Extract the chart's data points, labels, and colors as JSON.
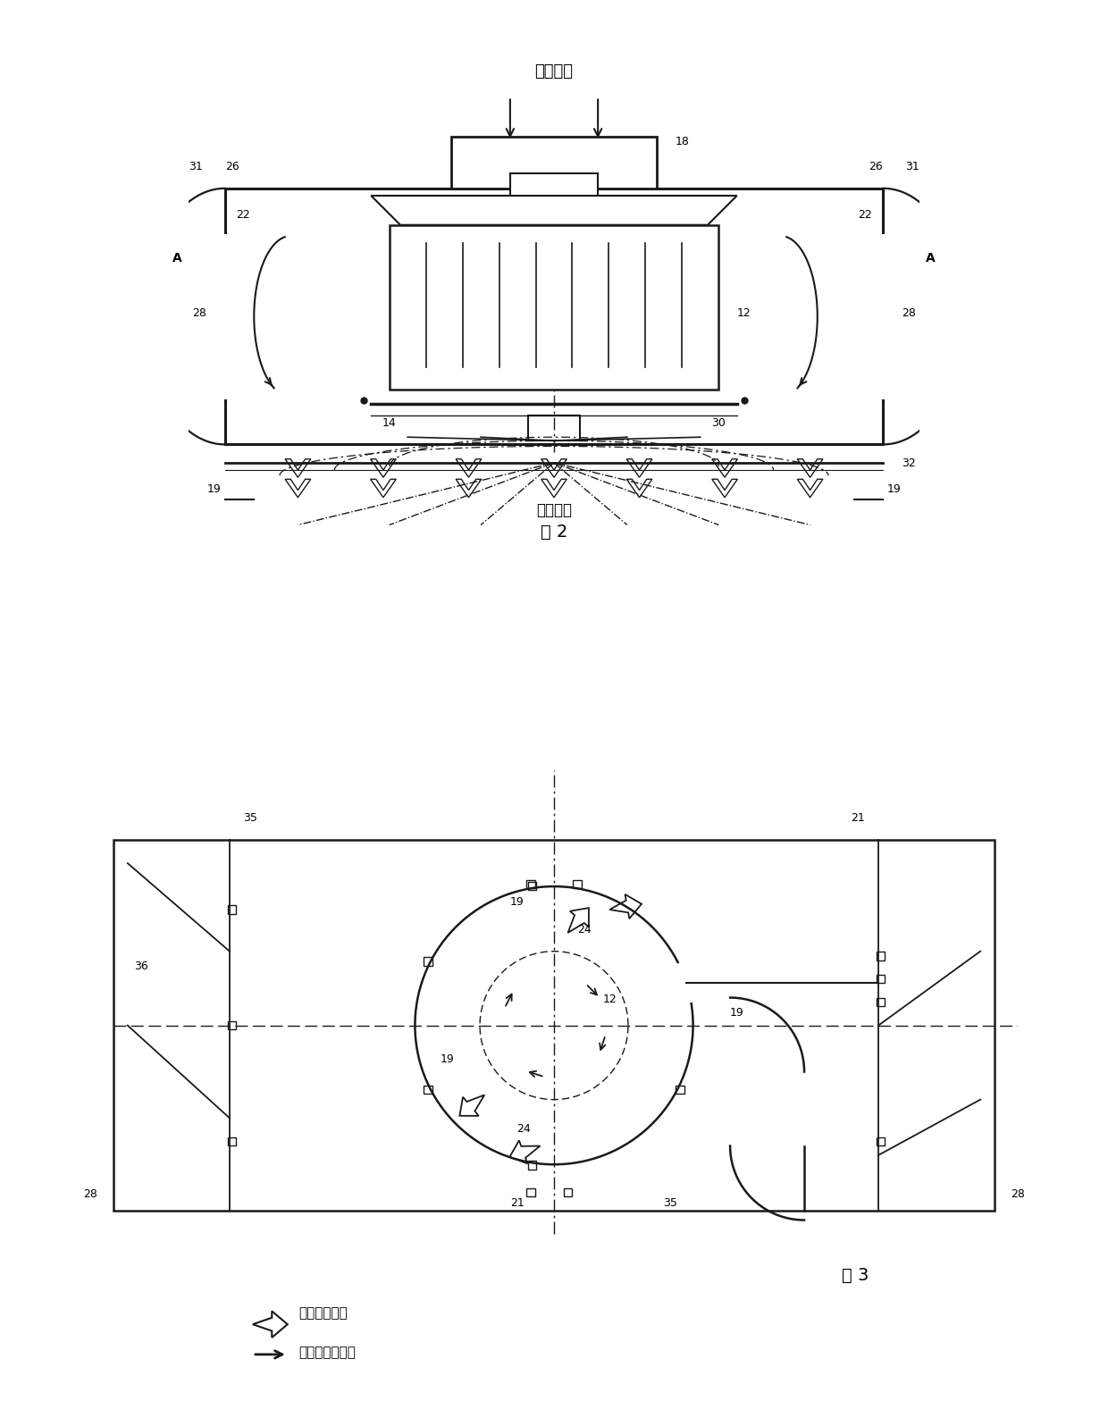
{
  "fig_width": 12.4,
  "fig_height": 15.68,
  "background_color": "#ffffff",
  "line_color": "#1a1a1a",
  "fig2_title": "进入空气",
  "fig2_caption": "排出气体",
  "fig2_label": "图 2",
  "fig3_label": "图 3",
  "legend1": "空气流动方向",
  "legend2": "鼓风机旋转方向"
}
